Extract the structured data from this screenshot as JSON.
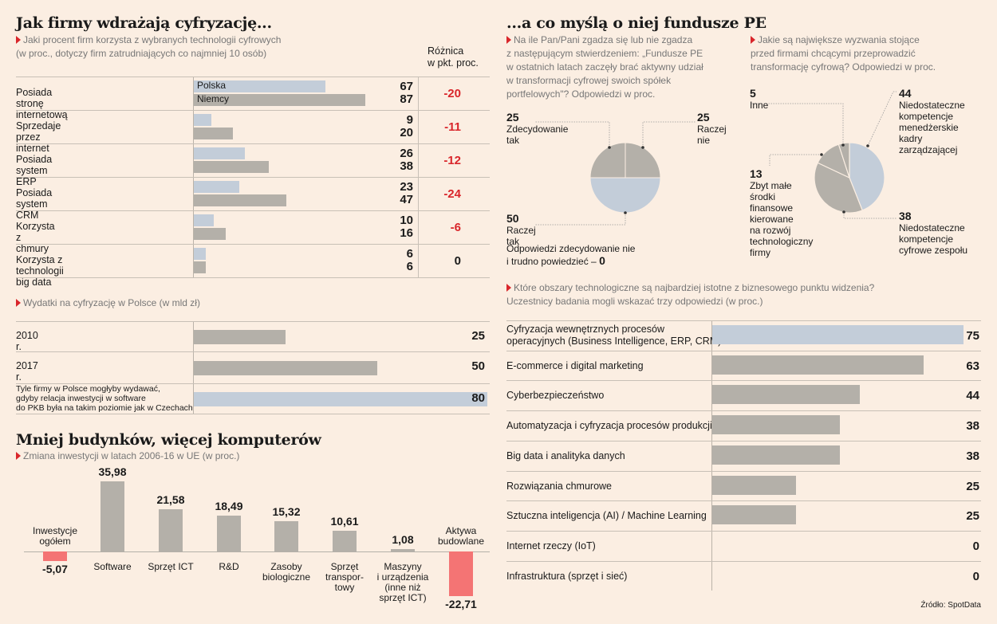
{
  "left_top": {
    "title": "Jak firmy wdrażają cyfryzację...",
    "subtitle1": "Jaki procent firm korzysta z wybranych technologii cyfrowych",
    "subtitle2": "(w proc., dotyczy firm zatrudniających co najmniej 10 osób)",
    "diff_header1": "Różnica",
    "diff_header2": "w pkt. proc.",
    "legend_pl": "Polska",
    "legend_de": "Niemcy",
    "colors": {
      "polska": "#c3cdd9",
      "niemcy": "#b4b0a9",
      "negative": "#d9262b"
    }
  },
  "spend": {
    "subtitle": "Wydatki na cyfryzację w Polsce (w mld zł)",
    "rows": [
      {
        "label": "2010 r.",
        "value": "25"
      },
      {
        "label": "2017 r.",
        "value": "50"
      },
      {
        "label_lines": [
          "Tyle firmy w Polsce mogłyby wydawać,",
          "gdyby relacja inwestycji w software",
          "do PKB była na takim poziomie jak w Czechach"
        ],
        "value": "80"
      }
    ]
  },
  "invest": {
    "title": "Mniej budynków, więcej komputerów",
    "subtitle": "Zmiana inwestycji w latach 2006-16 w UE (w proc.)"
  },
  "right": {
    "title": "...a co myślą o niej fundusze PE",
    "q1_lines": [
      "Na ile Pan/Pani zgadza się lub nie zgadza",
      "z następującym stwierdzeniem: „Fundusze PE",
      "w ostatnich latach zaczęły brać aktywny udział",
      "w transformacji cyfrowej swoich spółek",
      "portfelowych\"? Odpowiedzi w proc."
    ],
    "q2_lines": [
      "Jakie są największe wyzwania stojące",
      "przed firmami chcącymi przeprowadzić",
      "transformację cyfrową? Odpowiedzi w proc."
    ],
    "pie1_note_text": "Odpowiedzi zdecydowanie nie",
    "pie1_note_text2": "i trudno powiedzieć – ",
    "pie1_note_val": "0",
    "q3_line1": "Które obszary technologiczne są najbardziej istotne z biznesowego punktu widzenia?",
    "q3_line2": "Uczestnicy badania mogli wskazać trzy odpowiedzi (w proc.)",
    "source": "Źródło: SpotData"
  },
  "chart_data": [
    {
      "type": "bar",
      "orientation": "horizontal",
      "categories": [
        "Posiada stronę internetową",
        "Sprzedaje przez internet",
        "Posiada system ERP",
        "Posiada system CRM",
        "Korzysta z chmury",
        "Korzysta z technologii big data"
      ],
      "series": [
        {
          "name": "Polska",
          "values": [
            67,
            9,
            26,
            23,
            10,
            6
          ]
        },
        {
          "name": "Niemcy",
          "values": [
            87,
            20,
            38,
            47,
            16,
            6
          ]
        }
      ],
      "diff": [
        "-20",
        "-11",
        "-12",
        "-24",
        "-6",
        "0"
      ]
    },
    {
      "type": "bar",
      "orientation": "horizontal",
      "categories": [
        "2010 r.",
        "2017 r.",
        "Tyle firmy w Polsce mogłyby wydawać, gdyby relacja inwestycji w software do PKB była na takim poziomie jak w Czechach"
      ],
      "values": [
        25,
        50,
        80
      ]
    },
    {
      "type": "bar",
      "categories": [
        "Inwestycje ogółem",
        "Software",
        "Sprzęt ICT",
        "R&D",
        "Zasoby biologiczne",
        "Sprzęt transportowy",
        "Maszyny i urządzenia (inne niż sprzęt ICT)",
        "Aktywa budowlane"
      ],
      "cat_labels": [
        [
          "Inwestycje",
          "ogółem"
        ],
        [
          "Software"
        ],
        [
          "Sprzęt ICT"
        ],
        [
          "R&D"
        ],
        [
          "Zasoby",
          "biologiczne"
        ],
        [
          "Sprzęt",
          "transpor-",
          "towy"
        ],
        [
          "Maszyny",
          "i urządzenia",
          "(inne niż",
          "sprzęt ICT)"
        ],
        [
          "Aktywa",
          "budowlane"
        ]
      ],
      "values": [
        -5.07,
        35.98,
        21.58,
        18.49,
        15.32,
        10.61,
        1.08,
        -22.71
      ],
      "value_labels": [
        "-5,07",
        "35,98",
        "21,58",
        "18,49",
        "15,32",
        "10,61",
        "1,08",
        "-22,71"
      ]
    },
    {
      "type": "pie",
      "labels": [
        "Zdecydowanie tak",
        "Raczej nie",
        "Raczej tak"
      ],
      "values": [
        25,
        25,
        50
      ]
    },
    {
      "type": "pie",
      "labels": [
        "Niedostateczne kompetencje menedżerskie kadry zarządzającej",
        "Niedostateczne kompetencje cyfrowe zespołu",
        "Zbyt małe środki finansowe kierowane na rozwój technologiczny firmy",
        "Inne"
      ],
      "values": [
        44,
        38,
        13,
        5
      ]
    },
    {
      "type": "bar",
      "orientation": "horizontal",
      "categories": [
        "Cyfryzacja wewnętrznych procesów operacyjnych (Business Intelligence, ERP, CRM)",
        "E-commerce i digital marketing",
        "Cyberbezpieczeństwo",
        "Automatyzacja i cyfryzacja procesów produkcji",
        "Big data i analityka danych",
        "Rozwiązania chmurowe",
        "Sztuczna inteligencja (AI) / Machine Learning",
        "Internet rzeczy (IoT)",
        "Infrastruktura (sprzęt i sieć)"
      ],
      "values": [
        75,
        63,
        44,
        38,
        38,
        25,
        25,
        0,
        0
      ]
    }
  ]
}
